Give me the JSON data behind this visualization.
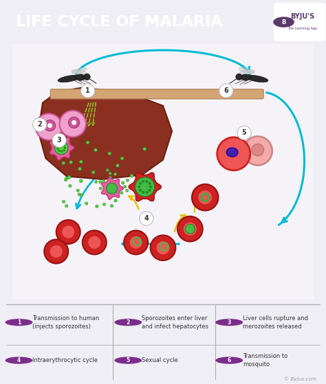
{
  "title": "LIFE CYCLE OF MALARIA",
  "title_bg": "#5b3a6b",
  "title_color": "#ffffff",
  "bg_color": "#f0eef5",
  "main_bg": "#f5f3f8",
  "circle_color": "#7b2d8b",
  "divider_color": "#aaaaaa",
  "watermark": "© Byjus.com",
  "legend_items": [
    {
      "num": "1",
      "text": "Transmission to human\n(injects sporozoites)",
      "col": 0,
      "row": 0
    },
    {
      "num": "2",
      "text": "Sporozoites enter liver\nand infect hepatocytes",
      "col": 1,
      "row": 0
    },
    {
      "num": "3",
      "text": "Liver cells rupture and\nmerozoites released",
      "col": 2,
      "row": 0
    },
    {
      "num": "4",
      "text": "Intraerythrocytic cycle",
      "col": 0,
      "row": 1
    },
    {
      "num": "5",
      "text": "Sexual cycle",
      "col": 1,
      "row": 1
    },
    {
      "num": "6",
      "text": "Transmission to\nmosquito",
      "col": 2,
      "row": 1
    }
  ]
}
